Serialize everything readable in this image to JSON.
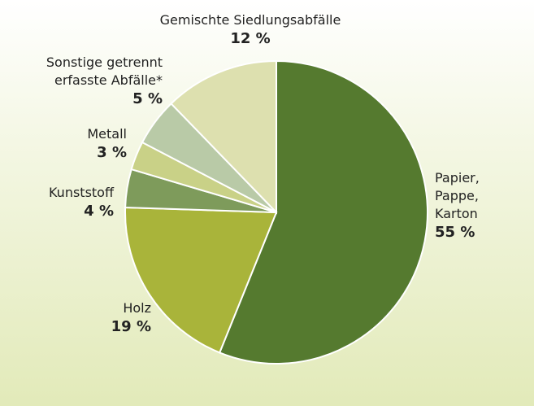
{
  "chart_data": {
    "type": "pie",
    "categories": [
      "Papier, Pappe, Karton",
      "Holz",
      "Kunststoff",
      "Metall",
      "Sonstige getrennt erfasste Abfälle*",
      "Gemischte Siedlungsabfälle"
    ],
    "values": [
      55,
      19,
      4,
      3,
      5,
      12
    ],
    "value_labels": [
      "55 %",
      "19 %",
      "4 %",
      "3 %",
      "5 %",
      "12 %"
    ],
    "colors": [
      "#557a2f",
      "#a9b43a",
      "#7e9b5b",
      "#c9d187",
      "#b9caa7",
      "#dde0af"
    ]
  }
}
